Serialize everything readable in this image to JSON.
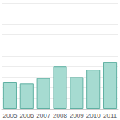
{
  "chart_data": {
    "type": "bar",
    "categories": [
      "2005",
      "2006",
      "2007",
      "2008",
      "2009",
      "2010",
      "2011"
    ],
    "values": [
      2.5,
      2.4,
      2.9,
      4.0,
      3.0,
      3.7,
      4.4
    ],
    "color": "#a6dbd1",
    "ylim": [
      0,
      10
    ],
    "yticks": [
      0,
      1,
      2,
      3,
      4,
      5,
      6,
      7,
      8,
      9,
      10
    ],
    "grid": true,
    "tick_labels": "x"
  }
}
